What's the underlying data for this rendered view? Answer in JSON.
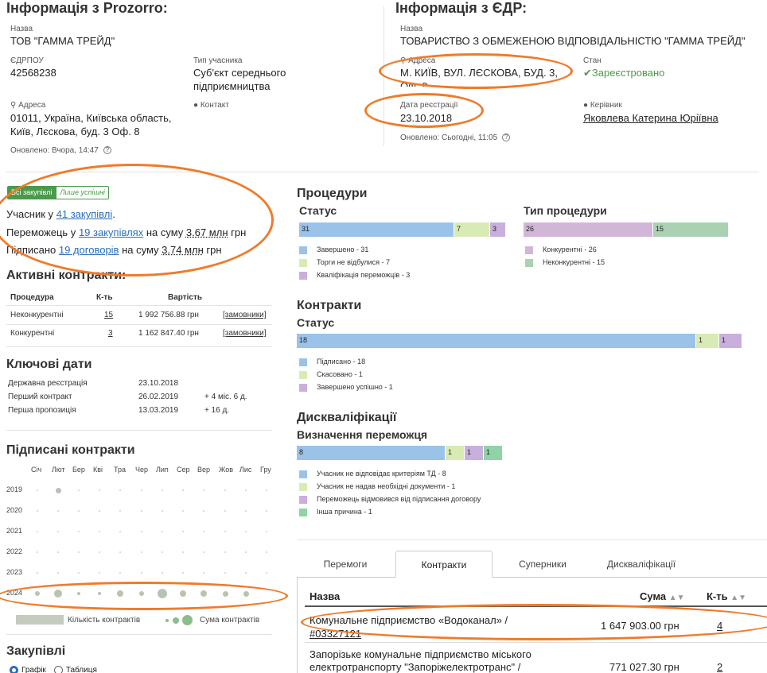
{
  "prozorro": {
    "title": "Інформація з Prozorro:",
    "name_label": "Назва",
    "name": "ТОВ \"ГАММА ТРЕЙД\"",
    "edrpou_label": "ЄДРПОУ",
    "edrpou": "42568238",
    "type_label": "Тип учасника",
    "type_line1": "Суб'єкт середнього",
    "type_line2": "підприємництва",
    "address_label": "Адреса",
    "address_line1": "01011, Україна, Київська область,",
    "address_line2": "Київ, Лєскова, буд. 3 Оф. 8",
    "contact_label": "Контакт",
    "updated": "Оновлено: Вчора, 14:47"
  },
  "edr": {
    "title": "Інформація з ЄДР:",
    "name_label": "Назва",
    "name": "ТОВАРИСТВО З ОБМЕЖЕНОЮ ВІДПОВІДАЛЬНІСТЮ \"ГАММА ТРЕЙД\"",
    "address_label": "Адреса",
    "address_line1": "М. КИЇВ, ВУЛ. ЛЄСКОВА, БУД. 3,",
    "address_line2": "ОФ. 8",
    "status_label": "Стан",
    "status": "Зареєстровано",
    "reg_date_label": "Дата реєстрації",
    "reg_date": "23.10.2018",
    "head_label": "Керівник",
    "head": "Яковлева Катерина Юріївна",
    "updated": "Оновлено: Сьогодні, 11:05"
  },
  "filters": {
    "all": "Всі закупівлі",
    "success": "Лише успішні"
  },
  "summary": {
    "l1_pre": "Учасник у ",
    "l1_link": "41 закупівлі",
    "l1_post": ".",
    "l2_pre": "Переможець у ",
    "l2_link": "19 закупівлях",
    "l2_mid": " на суму ",
    "l2_sum": "3.67 млн",
    "l2_post": " грн",
    "l3_pre": "Підписано ",
    "l3_link": "19 договорів",
    "l3_mid": " на суму ",
    "l3_sum": "3.74 млн",
    "l3_post": " грн"
  },
  "active_contracts": {
    "title": "Активні контракти:",
    "headers": [
      "Процедура",
      "К-ть",
      "Вартість"
    ],
    "rows": [
      {
        "name": "Неконкурентні",
        "count": "15",
        "sum": "1 992 756.88 грн",
        "link": "[замовники]"
      },
      {
        "name": "Конкурентні",
        "count": "3",
        "sum": "1 162 847.40 грн",
        "link": "[замовники]"
      }
    ]
  },
  "key_dates": {
    "title": "Ключові дати",
    "rows": [
      {
        "label": "Державна реєстрація",
        "date": "23.10.2018",
        "delta": ""
      },
      {
        "label": "Перший контракт",
        "date": "26.02.2019",
        "delta": "+ 4 міс. 6 д."
      },
      {
        "label": "Перша пропозиція",
        "date": "13.03.2019",
        "delta": "+ 16 д."
      }
    ]
  },
  "signed": {
    "title": "Підписані контракти",
    "months": [
      "Січ",
      "Лют",
      "Бер",
      "Кві",
      "Тра",
      "Чер",
      "Лип",
      "Сер",
      "Вер",
      "Жов",
      "Лис",
      "Гру"
    ],
    "years": [
      "2019",
      "2020",
      "2021",
      "2022",
      "2023",
      "2024"
    ],
    "legend_count": "Кількість контрактів",
    "legend_sum": "Сума контрактів"
  },
  "purchases": {
    "title": "Закупівлі",
    "opt_graph": "Графік",
    "opt_table": "Таблиця"
  },
  "procedures": {
    "title": "Процедури",
    "status_title": "Статус",
    "status_bars": [
      {
        "value": 31,
        "label": "31"
      },
      {
        "value": 7,
        "label": "7"
      },
      {
        "value": 3,
        "label": "3"
      }
    ],
    "status_legend": [
      "Завершено - 31",
      "Торги не відбулися - 7",
      "Кваліфікація переможців - 3"
    ],
    "type_title": "Тип процедури",
    "type_bars": [
      {
        "value": 26,
        "label": "26"
      },
      {
        "value": 15,
        "label": "15"
      }
    ],
    "type_legend": [
      "Конкурентні - 26",
      "Неконкурентні - 15"
    ]
  },
  "contracts": {
    "title": "Контракти",
    "status_title": "Статус",
    "bars": [
      {
        "value": 18,
        "label": "18"
      },
      {
        "value": 1,
        "label": "1"
      },
      {
        "value": 1,
        "label": "1"
      }
    ],
    "legend": [
      "Підписано - 18",
      "Скасовано - 1",
      "Завершено успішно - 1"
    ]
  },
  "disq": {
    "title": "Дискваліфікації",
    "sub": "Визначення переможця",
    "bars": [
      {
        "value": 8,
        "label": "8"
      },
      {
        "value": 1,
        "label": "1"
      },
      {
        "value": 1,
        "label": "1"
      },
      {
        "value": 1,
        "label": "1"
      }
    ],
    "legend": [
      "Учасник не відповідає критеріям ТД - 8",
      "Учасник не надав необхідні документи - 1",
      "Переможець відмовився від підписання договору",
      "Інша причина - 1"
    ]
  },
  "tabs": [
    "Перемоги",
    "Контракти",
    "Суперники",
    "Дискваліфікації"
  ],
  "buyers_table": {
    "headers": {
      "name": "Назва",
      "sum": "Сума",
      "count": "К-ть"
    },
    "rows": [
      {
        "name1": "Комунальне підприємство «Водоканал» /",
        "code": "#03327121",
        "sum": "1 647 903.00 грн",
        "count": "4"
      },
      {
        "name1": "Запорізьке комунальне підприємство міського",
        "name2": "електротранспорту \"Запоріжелектротранс\" /",
        "sum": "771 027.30 грн",
        "count": "2"
      }
    ]
  },
  "colors": {
    "accent": "#4a9a4a",
    "link": "#2a6ebb",
    "annotation": "#ef7b2a"
  }
}
